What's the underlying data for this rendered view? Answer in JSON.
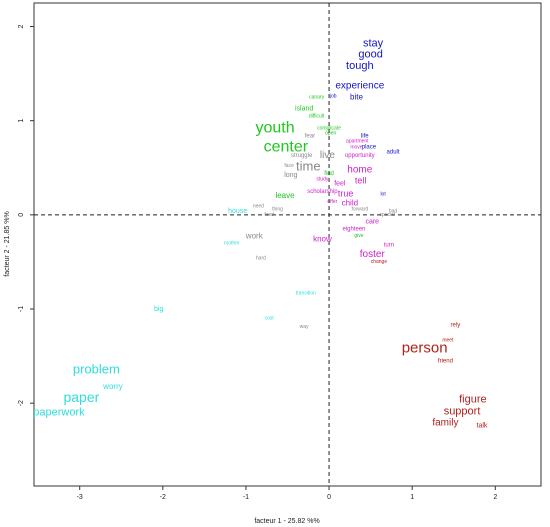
{
  "chart_data": {
    "type": "scatter",
    "title": "",
    "xlabel": "facteur 1 - 25.82 %%",
    "ylabel": "facteur 2 - 21.85 %%",
    "xlim": [
      -3.55,
      2.55
    ],
    "ylim": [
      -2.88,
      2.25
    ],
    "xticks": [
      -3,
      -2,
      -1,
      0,
      1,
      2
    ],
    "yticks": [
      -2,
      -1,
      0,
      1,
      2
    ],
    "zero_lines": true,
    "grid": false,
    "colors": {
      "blue": "#1414c8",
      "green": "#1ec81e",
      "gray": "#888888",
      "magenta": "#cc22cc",
      "red": "#b0221a",
      "cyan": "#30dcdc"
    },
    "points": [
      {
        "text": "stay",
        "x": 0.53,
        "y": 1.82,
        "color": "blue",
        "size": 11
      },
      {
        "text": "good",
        "x": 0.5,
        "y": 1.7,
        "color": "blue",
        "size": 11
      },
      {
        "text": "tough",
        "x": 0.37,
        "y": 1.58,
        "color": "blue",
        "size": 11
      },
      {
        "text": "experience",
        "x": 0.37,
        "y": 1.37,
        "color": "blue",
        "size": 10
      },
      {
        "text": "bite",
        "x": 0.33,
        "y": 1.25,
        "color": "blue",
        "size": 8
      },
      {
        "text": "job",
        "x": 0.05,
        "y": 1.26,
        "color": "blue",
        "size": 5
      },
      {
        "text": "life",
        "x": 0.43,
        "y": 0.84,
        "color": "blue",
        "size": 6
      },
      {
        "text": "place",
        "x": 0.48,
        "y": 0.72,
        "color": "blue",
        "size": 6
      },
      {
        "text": "adult",
        "x": 0.77,
        "y": 0.67,
        "color": "blue",
        "size": 6
      },
      {
        "text": "lot",
        "x": 0.65,
        "y": 0.22,
        "color": "blue",
        "size": 5
      },
      {
        "text": "youth",
        "x": -0.65,
        "y": 0.92,
        "color": "green",
        "size": 16
      },
      {
        "text": "center",
        "x": -0.52,
        "y": 0.72,
        "color": "green",
        "size": 16
      },
      {
        "text": "canary",
        "x": -0.15,
        "y": 1.25,
        "color": "green",
        "size": 5
      },
      {
        "text": "island",
        "x": -0.3,
        "y": 1.13,
        "color": "green",
        "size": 7
      },
      {
        "text": "difficult",
        "x": -0.15,
        "y": 1.05,
        "color": "green",
        "size": 5
      },
      {
        "text": "complicate",
        "x": 0.0,
        "y": 0.92,
        "color": "green",
        "size": 5
      },
      {
        "text": "open",
        "x": 0.02,
        "y": 0.87,
        "color": "green",
        "size": 5
      },
      {
        "text": "find",
        "x": 0.0,
        "y": 0.44,
        "color": "green",
        "size": 6
      },
      {
        "text": "leave",
        "x": -0.53,
        "y": 0.2,
        "color": "green",
        "size": 8
      },
      {
        "text": "give",
        "x": 0.36,
        "y": -0.22,
        "color": "green",
        "size": 5
      },
      {
        "text": "fear",
        "x": -0.23,
        "y": 0.84,
        "color": "gray",
        "size": 6
      },
      {
        "text": "live",
        "x": -0.02,
        "y": 0.63,
        "color": "gray",
        "size": 10
      },
      {
        "text": "struggle",
        "x": -0.33,
        "y": 0.63,
        "color": "gray",
        "size": 6
      },
      {
        "text": "time",
        "x": -0.25,
        "y": 0.51,
        "color": "gray",
        "size": 13
      },
      {
        "text": "face",
        "x": -0.48,
        "y": 0.52,
        "color": "gray",
        "size": 5
      },
      {
        "text": "long",
        "x": -0.46,
        "y": 0.42,
        "color": "gray",
        "size": 7
      },
      {
        "text": "work",
        "x": -0.9,
        "y": -0.23,
        "color": "gray",
        "size": 8
      },
      {
        "text": "need",
        "x": -0.85,
        "y": 0.09,
        "color": "gray",
        "size": 5
      },
      {
        "text": "thing",
        "x": -0.62,
        "y": 0.06,
        "color": "gray",
        "size": 5
      },
      {
        "text": "feed",
        "x": -0.72,
        "y": 0.0,
        "color": "gray",
        "size": 5
      },
      {
        "text": "hard",
        "x": -0.82,
        "y": -0.46,
        "color": "gray",
        "size": 5
      },
      {
        "text": "way",
        "x": -0.3,
        "y": -1.19,
        "color": "gray",
        "size": 5
      },
      {
        "text": "forward",
        "x": 0.37,
        "y": 0.06,
        "color": "gray",
        "size": 5
      },
      {
        "text": "bad",
        "x": 0.77,
        "y": 0.04,
        "color": "gray",
        "size": 5
      },
      {
        "text": "special",
        "x": 0.7,
        "y": 0.0,
        "color": "gray",
        "size": 5
      },
      {
        "text": "apartment",
        "x": 0.34,
        "y": 0.78,
        "color": "magenta",
        "size": 5
      },
      {
        "text": "move",
        "x": 0.33,
        "y": 0.72,
        "color": "magenta",
        "size": 5
      },
      {
        "text": "opportunity",
        "x": 0.37,
        "y": 0.63,
        "color": "magenta",
        "size": 6
      },
      {
        "text": "home",
        "x": 0.37,
        "y": 0.48,
        "color": "magenta",
        "size": 10
      },
      {
        "text": "tell",
        "x": 0.38,
        "y": 0.36,
        "color": "magenta",
        "size": 9
      },
      {
        "text": "feel",
        "x": 0.13,
        "y": 0.33,
        "color": "magenta",
        "size": 7
      },
      {
        "text": "study",
        "x": -0.08,
        "y": 0.38,
        "color": "magenta",
        "size": 5
      },
      {
        "text": "scholarship",
        "x": -0.08,
        "y": 0.25,
        "color": "magenta",
        "size": 6
      },
      {
        "text": "true",
        "x": 0.2,
        "y": 0.22,
        "color": "magenta",
        "size": 9
      },
      {
        "text": "offer",
        "x": 0.04,
        "y": 0.14,
        "color": "magenta",
        "size": 5
      },
      {
        "text": "child",
        "x": 0.25,
        "y": 0.12,
        "color": "magenta",
        "size": 8
      },
      {
        "text": "care",
        "x": 0.52,
        "y": -0.07,
        "color": "magenta",
        "size": 7
      },
      {
        "text": "eighteen",
        "x": 0.3,
        "y": -0.15,
        "color": "magenta",
        "size": 6
      },
      {
        "text": "know",
        "x": -0.08,
        "y": -0.26,
        "color": "magenta",
        "size": 8
      },
      {
        "text": "turn",
        "x": 0.72,
        "y": -0.32,
        "color": "magenta",
        "size": 6
      },
      {
        "text": "foster",
        "x": 0.52,
        "y": -0.42,
        "color": "magenta",
        "size": 10
      },
      {
        "text": "change",
        "x": 0.6,
        "y": -0.5,
        "color": "red",
        "size": 5
      },
      {
        "text": "rely",
        "x": 1.52,
        "y": -1.17,
        "color": "red",
        "size": 6
      },
      {
        "text": "meet",
        "x": 1.43,
        "y": -1.33,
        "color": "red",
        "size": 5
      },
      {
        "text": "person",
        "x": 1.15,
        "y": -1.42,
        "color": "red",
        "size": 15
      },
      {
        "text": "friend",
        "x": 1.4,
        "y": -1.55,
        "color": "red",
        "size": 6
      },
      {
        "text": "figure",
        "x": 1.73,
        "y": -1.96,
        "color": "red",
        "size": 11
      },
      {
        "text": "support",
        "x": 1.6,
        "y": -2.09,
        "color": "red",
        "size": 11
      },
      {
        "text": "family",
        "x": 1.4,
        "y": -2.21,
        "color": "red",
        "size": 10
      },
      {
        "text": "talk",
        "x": 1.84,
        "y": -2.24,
        "color": "red",
        "size": 7
      },
      {
        "text": "house",
        "x": -1.1,
        "y": 0.04,
        "color": "cyan",
        "size": 7
      },
      {
        "text": "mother",
        "x": -1.17,
        "y": -0.3,
        "color": "cyan",
        "size": 5
      },
      {
        "text": "big",
        "x": -2.05,
        "y": -1.0,
        "color": "cyan",
        "size": 7
      },
      {
        "text": "transition",
        "x": -0.28,
        "y": -0.83,
        "color": "cyan",
        "size": 5
      },
      {
        "text": "cost",
        "x": -0.72,
        "y": -1.1,
        "color": "cyan",
        "size": 5
      },
      {
        "text": "problem",
        "x": -2.8,
        "y": -1.65,
        "color": "cyan",
        "size": 13
      },
      {
        "text": "worry",
        "x": -2.6,
        "y": -1.83,
        "color": "cyan",
        "size": 8
      },
      {
        "text": "paper",
        "x": -2.98,
        "y": -1.95,
        "color": "cyan",
        "size": 14
      },
      {
        "text": "paperwork",
        "x": -3.25,
        "y": -2.1,
        "color": "cyan",
        "size": 11
      }
    ]
  }
}
